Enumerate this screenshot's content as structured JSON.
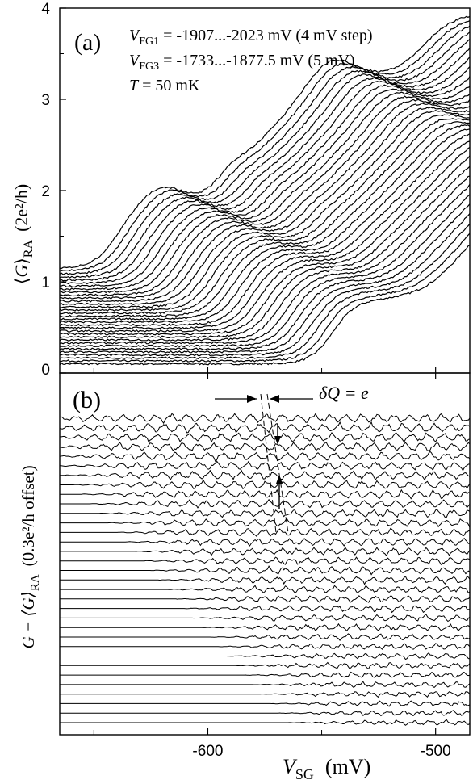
{
  "chart_data": [
    {
      "panel": "a",
      "type": "line",
      "panel_label": "(a)",
      "annotation_lines": [
        {
          "var": "V",
          "sub": "FG1",
          "text": " = -1907...-2023 mV (4 mV step)"
        },
        {
          "var": "V",
          "sub": "FG3",
          "text": " = -1733...-1877.5 mV (5 mV)"
        },
        {
          "var": "T",
          "sub": "",
          "text": " = 50 mK"
        }
      ],
      "ylabel": {
        "open": "⟨",
        "var": "G",
        "close": "⟩",
        "sub": "RA",
        "unit": "(2e²/h)"
      },
      "ylim": [
        0,
        4
      ],
      "yticks": [
        "0",
        "1",
        "2",
        "3",
        "4"
      ],
      "grid": false,
      "n_traces": 33,
      "trace_offset_range": [
        0.1,
        1.15
      ],
      "description_traces": "stacked conductance traces vs VSG, rising from ~0.1 to ~3.8"
    },
    {
      "panel": "b",
      "type": "line",
      "panel_label": "(b)",
      "ylabel": {
        "left": "G − ⟨G⟩",
        "sub": "RA",
        "right": "(0.3e²/h offset)"
      },
      "n_traces": 33,
      "annotation": "δQ = e",
      "grid": false
    }
  ],
  "xaxis": {
    "label_var": "V",
    "label_sub": "SG",
    "label_unit": "(mV)",
    "range": [
      -665,
      -485
    ],
    "ticks": [
      "-600",
      "-500"
    ],
    "tick_values": [
      -600,
      -500
    ]
  }
}
